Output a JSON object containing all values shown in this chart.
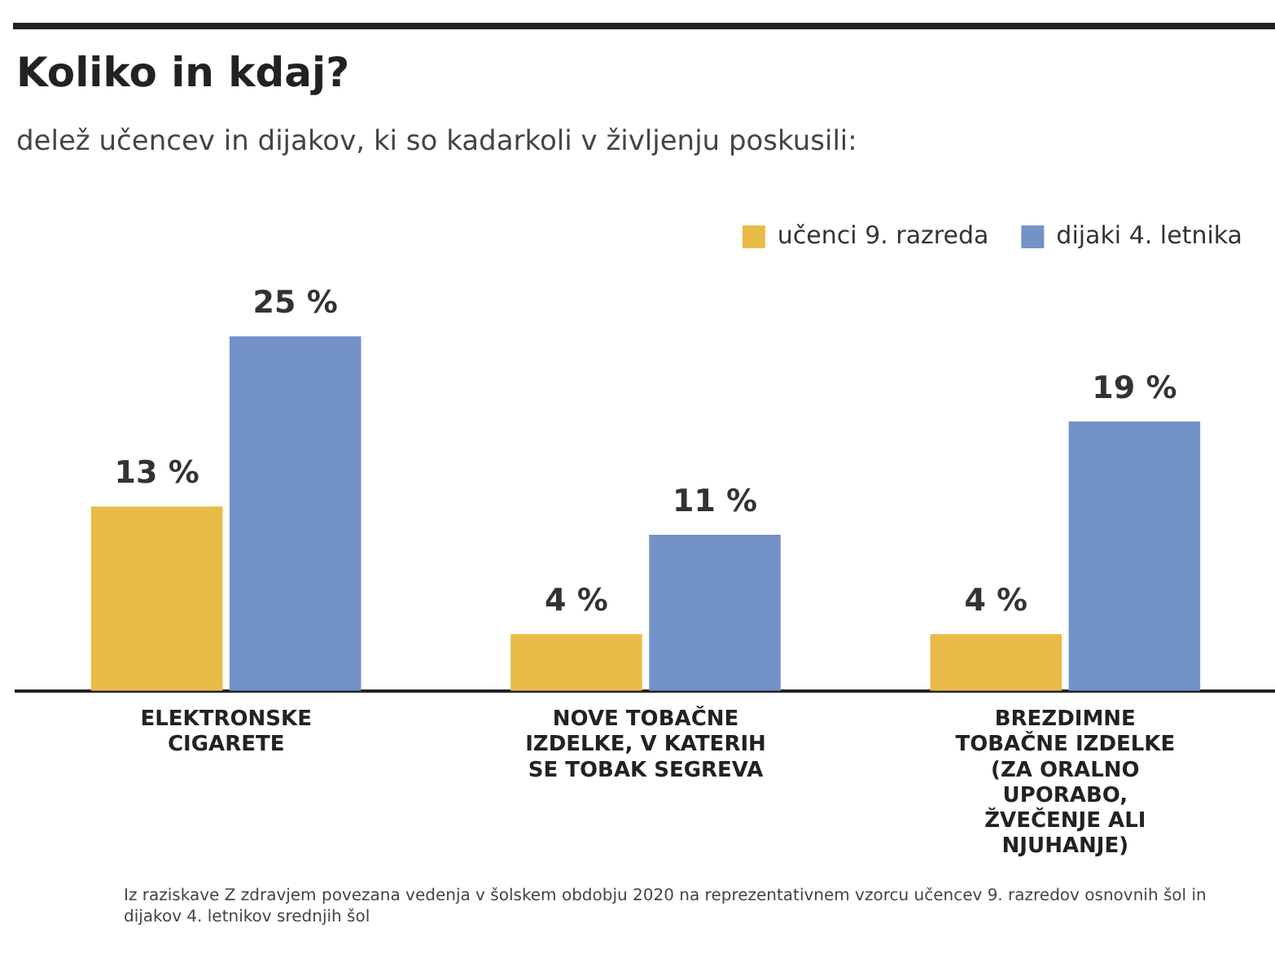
{
  "chart_data": {
    "type": "bar",
    "title": "Koliko in kdaj?",
    "subtitle": "delež učencev in dijakov, ki so kadarkoli v življenju poskusili:",
    "categories": [
      "ELEKTRONSKE CIGARETE",
      "NOVE TOBAČNE IZDELKE, V KATERIH SE TOBAK SEGREVA",
      "BREZDIMNE TOBAČNE IZDELKE (ZA ORALNO UPORABO, ŽVEČENJE ALI NJUHANJE)"
    ],
    "series": [
      {
        "name": "učenci 9. razreda",
        "color": "#e9bb48",
        "values": [
          13,
          4,
          4
        ],
        "value_labels": [
          "13 %",
          "4 %",
          "4 %"
        ]
      },
      {
        "name": "dijaki 4. letnika",
        "color": "#7392c8",
        "values": [
          25,
          11,
          19
        ],
        "value_labels": [
          "25 %",
          "11 %",
          "19 %"
        ]
      }
    ],
    "legend": "top right",
    "grid": false,
    "annotations": [
      "Iz raziskave Z zdravjem povezana vedenja v šolskem obdobju 2020 na reprezentativnem vzorcu učencev 9. razredov osnovnih šol in dijakov 4. letnikov srednjih šol"
    ]
  }
}
